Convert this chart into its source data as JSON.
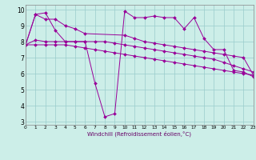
{
  "bg_color": "#cceee8",
  "line_color": "#990099",
  "grid_color": "#99cccc",
  "xlabel": "Windchill (Refroidissement éolien,°C)",
  "ylabel_ticks": [
    3,
    4,
    5,
    6,
    7,
    8,
    9,
    10
  ],
  "xlabel_ticks": [
    0,
    1,
    2,
    3,
    4,
    5,
    6,
    7,
    8,
    9,
    10,
    11,
    12,
    13,
    14,
    15,
    16,
    17,
    18,
    19,
    20,
    21,
    22,
    23
  ],
  "xlim": [
    0,
    23
  ],
  "ylim": [
    2.8,
    10.3
  ],
  "series": [
    {
      "x": [
        0,
        1,
        2,
        3,
        4,
        5,
        6,
        7,
        8,
        9,
        10,
        11,
        12,
        13,
        14,
        15,
        16,
        17,
        18,
        19,
        20,
        21,
        22,
        23
      ],
      "y": [
        7.8,
        9.7,
        9.8,
        8.7,
        8.0,
        8.0,
        8.0,
        5.4,
        3.3,
        3.5,
        9.9,
        9.5,
        9.5,
        9.6,
        9.5,
        9.5,
        8.8,
        9.5,
        8.2,
        7.5,
        7.5,
        6.2,
        6.1,
        5.8
      ]
    },
    {
      "x": [
        0,
        1,
        2,
        3,
        4,
        5,
        6,
        10,
        11,
        12,
        13,
        14,
        15,
        16,
        17,
        18,
        19,
        20,
        21,
        22,
        23
      ],
      "y": [
        7.8,
        9.7,
        9.4,
        9.4,
        9.0,
        8.8,
        8.5,
        8.4,
        8.2,
        8.0,
        7.9,
        7.8,
        7.7,
        7.6,
        7.5,
        7.4,
        7.3,
        7.2,
        7.1,
        7.0,
        5.9
      ]
    },
    {
      "x": [
        0,
        1,
        2,
        3,
        4,
        5,
        6,
        7,
        8,
        9,
        10,
        11,
        12,
        13,
        14,
        15,
        16,
        17,
        18,
        19,
        20,
        21,
        22,
        23
      ],
      "y": [
        7.8,
        8.1,
        8.0,
        8.0,
        8.0,
        8.0,
        8.0,
        8.0,
        8.0,
        7.9,
        7.8,
        7.7,
        7.6,
        7.5,
        7.4,
        7.3,
        7.2,
        7.1,
        7.0,
        6.9,
        6.7,
        6.5,
        6.3,
        6.1
      ]
    },
    {
      "x": [
        0,
        1,
        2,
        3,
        4,
        5,
        6,
        7,
        8,
        9,
        10,
        11,
        12,
        13,
        14,
        15,
        16,
        17,
        18,
        19,
        20,
        21,
        22,
        23
      ],
      "y": [
        7.8,
        7.8,
        7.8,
        7.8,
        7.8,
        7.7,
        7.6,
        7.5,
        7.4,
        7.3,
        7.2,
        7.1,
        7.0,
        6.9,
        6.8,
        6.7,
        6.6,
        6.5,
        6.4,
        6.3,
        6.2,
        6.1,
        6.0,
        5.9
      ]
    }
  ]
}
